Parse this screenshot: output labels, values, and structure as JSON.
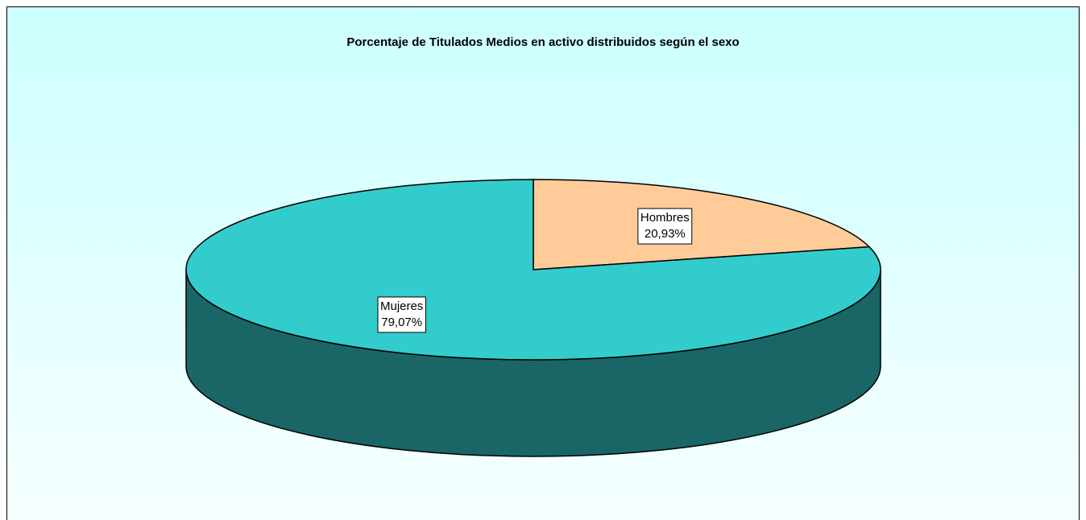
{
  "chart_data": {
    "type": "pie",
    "title": "Porcentaje de Titulados Medios en activo distribuidos según el sexo",
    "categories": [
      "Hombres",
      "Mujeres"
    ],
    "values": [
      20.93,
      79.07
    ],
    "value_labels": [
      "20,93%",
      "79,07%"
    ],
    "colors": [
      "#ffcc99",
      "#33cccc"
    ]
  }
}
